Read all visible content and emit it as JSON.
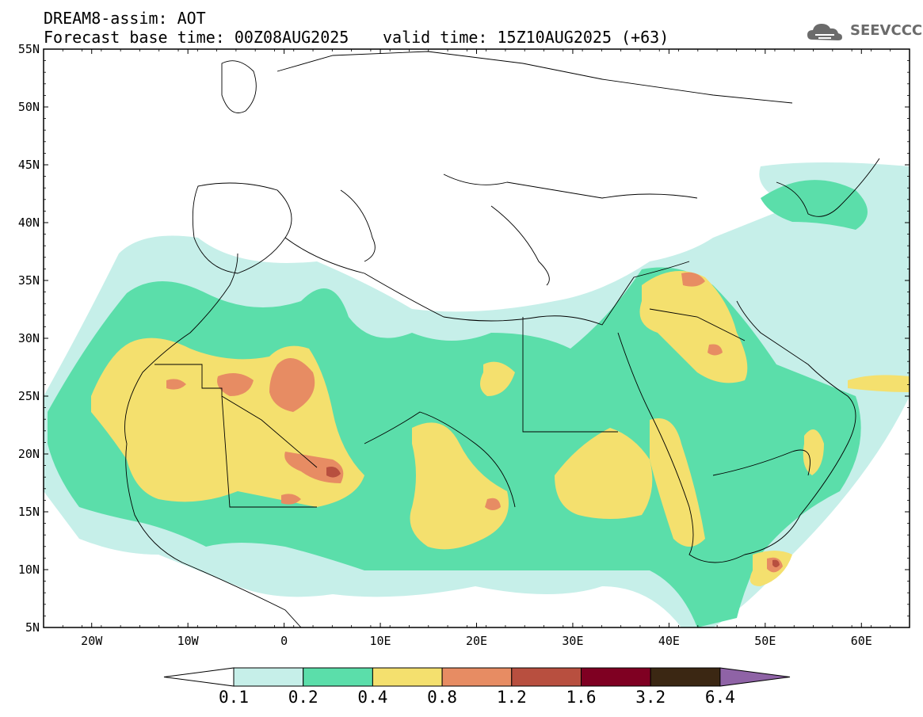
{
  "header": {
    "line1": "DREAM8-assim: AOT",
    "line2": "Forecast base time: 00Z08AUG2025",
    "line3": "valid time: 15Z10AUG2025 (+63)",
    "logo": "SEEVCCC"
  },
  "map": {
    "variable": "AOT",
    "lat_range": [
      5,
      55
    ],
    "lon_range": [
      -25,
      65
    ],
    "lat_ticks": [
      "55N",
      "50N",
      "45N",
      "40N",
      "35N",
      "30N",
      "25N",
      "20N",
      "15N",
      "10N",
      "5N"
    ],
    "lon_ticks": [
      "20W",
      "10W",
      "0",
      "10E",
      "20E",
      "30E",
      "40E",
      "50E",
      "60E"
    ]
  },
  "colorbar": {
    "levels": [
      "0.1",
      "0.2",
      "0.4",
      "0.8",
      "1.2",
      "1.6",
      "3.2",
      "6.4"
    ],
    "colors": [
      "#ffffff",
      "#c6efe9",
      "#5bdeaa",
      "#f4e06e",
      "#e78c63",
      "#b84f3f",
      "#7f0022",
      "#3b2713",
      "#8f63a6"
    ]
  },
  "colors": {
    "c1": "#c6efe9",
    "c2": "#5bdeaa",
    "c3": "#f4e06e",
    "c4": "#e78c63",
    "c5": "#b84f3f",
    "c6": "#7f0022"
  }
}
